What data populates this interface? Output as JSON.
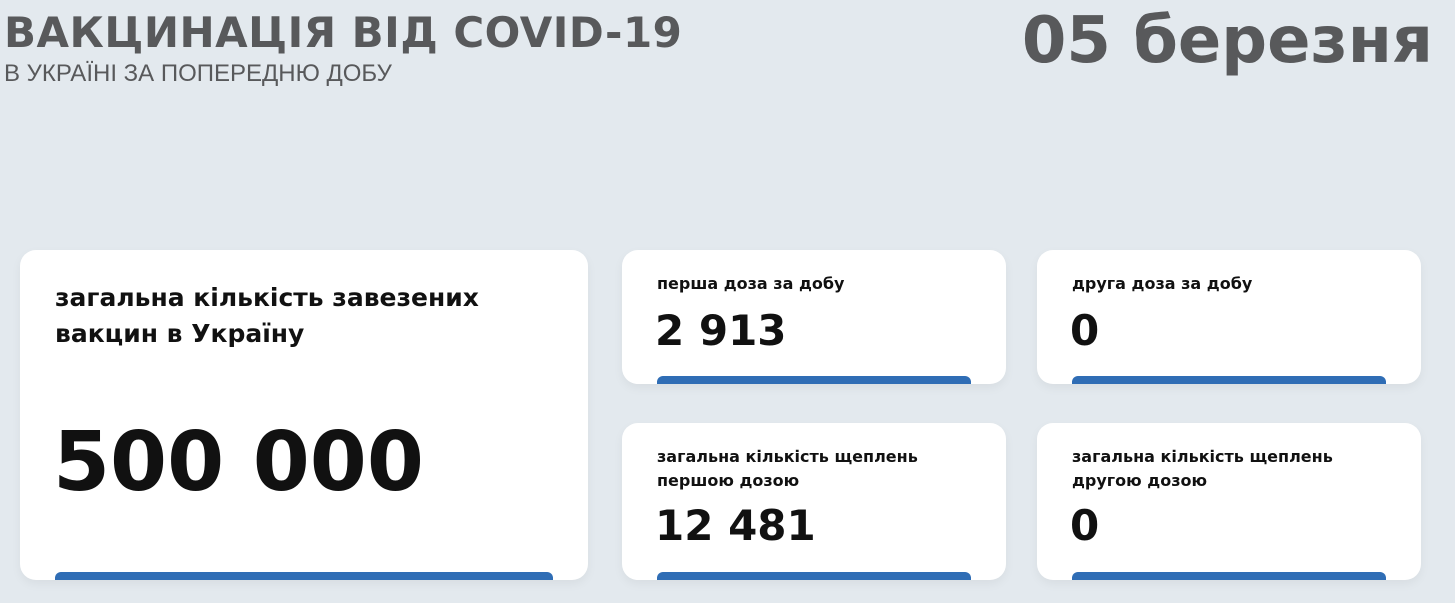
{
  "header": {
    "title": "ВАКЦИНАЦІЯ ВІД COVID-19",
    "subtitle": "В УКРАЇНІ ЗА ПОПЕРЕДНЮ ДОБУ",
    "date": "05 березня"
  },
  "colors": {
    "accent": "#2f6db5",
    "background": "#e3e9ee",
    "title": "#58595b"
  },
  "cards": [
    {
      "label": "загальна кількість завезених вакцин в Україну",
      "value": "500 000"
    },
    {
      "label": "перша доза за добу",
      "value": "2 913"
    },
    {
      "label": "друга доза за добу",
      "value": "0"
    },
    {
      "label": "загальна кількість щеплень першою дозою",
      "value": "12 481"
    },
    {
      "label": "загальна кількість щеплень другою дозою",
      "value": "0"
    }
  ]
}
